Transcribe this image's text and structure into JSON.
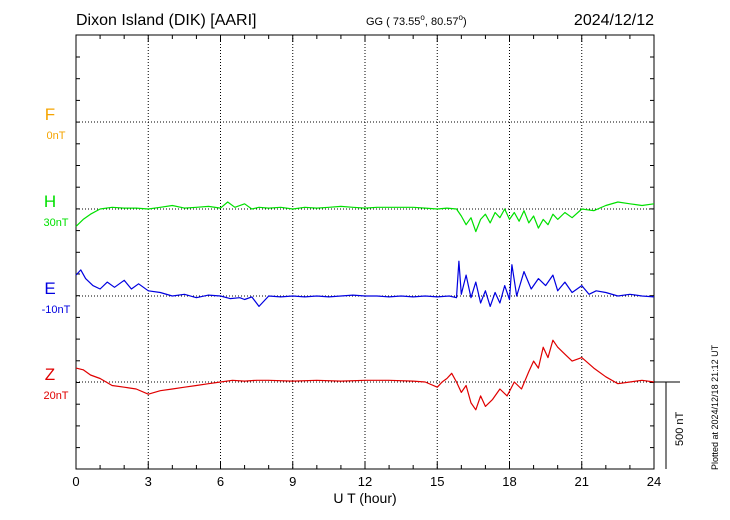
{
  "header": {
    "station": "Dixon Island (DIK)  [AARI]",
    "coords_prefix": "GG ( 73.55",
    "coords_mid": ",  80.57",
    "coords_suffix": ")",
    "date": "2024/12/12"
  },
  "footer": {
    "plotted": "Plotted at 2024/12/18 21:12 UT",
    "scale_label": "500 nT"
  },
  "chart_data": {
    "type": "line",
    "title": "Dixon Island (DIK)  [AARI]",
    "xlabel": "U T (hour)",
    "xlim": [
      0,
      24
    ],
    "xticks": [
      0,
      3,
      6,
      9,
      12,
      15,
      18,
      21,
      24
    ],
    "grid": true,
    "scale_bar_nT": 500,
    "series": [
      {
        "name": "F",
        "baseline_label": "0nT",
        "color": "#f5a400",
        "values": []
      },
      {
        "name": "H",
        "baseline_label": "30nT",
        "color": "#00e000",
        "x": [
          0,
          0.3,
          0.6,
          1,
          1.5,
          2,
          2.5,
          3,
          3.5,
          4,
          4.5,
          5,
          5.5,
          6,
          6.3,
          6.6,
          7,
          7.3,
          7.6,
          8,
          8.5,
          9,
          9.5,
          10,
          10.5,
          11,
          11.5,
          12,
          12.5,
          13,
          13.5,
          14,
          14.5,
          15,
          15.4,
          15.8,
          16,
          16.2,
          16.4,
          16.6,
          16.8,
          17,
          17.2,
          17.4,
          17.6,
          17.8,
          18,
          18.2,
          18.4,
          18.6,
          18.8,
          19,
          19.2,
          19.4,
          19.6,
          19.8,
          20,
          20.3,
          20.6,
          21,
          21.5,
          22,
          22.5,
          23,
          23.5,
          24
        ],
        "values": [
          -100,
          -60,
          -30,
          0,
          10,
          5,
          5,
          0,
          10,
          20,
          5,
          10,
          15,
          5,
          40,
          10,
          30,
          0,
          10,
          5,
          10,
          0,
          10,
          5,
          10,
          15,
          10,
          5,
          10,
          10,
          10,
          10,
          5,
          0,
          5,
          0,
          -40,
          -90,
          -50,
          -130,
          -60,
          -30,
          -80,
          -20,
          -50,
          0,
          -60,
          -20,
          -70,
          -10,
          -80,
          -40,
          -110,
          -60,
          -90,
          -30,
          -60,
          -20,
          -50,
          0,
          -10,
          20,
          40,
          30,
          20,
          30
        ]
      },
      {
        "name": "E",
        "baseline_label": "-10nT",
        "color": "#0000e0",
        "x": [
          0,
          0.2,
          0.4,
          0.7,
          1,
          1.3,
          1.6,
          2,
          2.3,
          2.6,
          3,
          3.5,
          4,
          4.5,
          5,
          5.5,
          6,
          6.4,
          6.8,
          7,
          7.3,
          7.6,
          8,
          8.5,
          9,
          9.5,
          10,
          10.5,
          11,
          11.5,
          12,
          12.5,
          13,
          13.5,
          14,
          14.5,
          15,
          15.5,
          15.8,
          15.9,
          16,
          16.2,
          16.4,
          16.6,
          16.8,
          17,
          17.2,
          17.4,
          17.6,
          17.8,
          18,
          18.1,
          18.3,
          18.6,
          18.9,
          19.2,
          19.5,
          19.8,
          20,
          20.3,
          20.6,
          21,
          21.3,
          21.6,
          22,
          22.5,
          23,
          23.5,
          24
        ],
        "values": [
          120,
          150,
          100,
          60,
          40,
          80,
          50,
          90,
          40,
          70,
          30,
          20,
          0,
          10,
          -10,
          5,
          0,
          -15,
          -10,
          -20,
          -5,
          -60,
          0,
          -5,
          0,
          -5,
          0,
          -5,
          0,
          5,
          0,
          0,
          -5,
          0,
          -5,
          0,
          -5,
          0,
          -10,
          200,
          10,
          120,
          -10,
          80,
          -40,
          30,
          -60,
          20,
          -40,
          60,
          -20,
          180,
          0,
          140,
          40,
          100,
          60,
          120,
          30,
          80,
          20,
          60,
          10,
          30,
          20,
          0,
          10,
          0,
          -5
        ]
      },
      {
        "name": "Z",
        "baseline_label": "20nT",
        "color": "#e00000",
        "x": [
          0,
          0.3,
          0.6,
          1,
          1.5,
          2,
          2.5,
          3,
          3.5,
          4,
          4.5,
          5,
          5.5,
          6,
          6.5,
          7,
          7.5,
          8,
          9,
          10,
          11,
          12,
          13,
          14,
          14.5,
          15,
          15.2,
          15.4,
          15.6,
          15.8,
          16,
          16.2,
          16.4,
          16.6,
          16.8,
          17,
          17.3,
          17.6,
          17.9,
          18.2,
          18.5,
          18.8,
          19,
          19.2,
          19.4,
          19.6,
          19.8,
          20,
          20.3,
          20.6,
          21,
          21.5,
          22,
          22.5,
          23,
          23.5,
          24
        ],
        "values": [
          80,
          70,
          40,
          20,
          -20,
          -30,
          -40,
          -70,
          -50,
          -40,
          -30,
          -20,
          -10,
          0,
          10,
          5,
          10,
          10,
          5,
          10,
          5,
          10,
          10,
          5,
          0,
          -30,
          0,
          20,
          50,
          0,
          -60,
          -20,
          -120,
          -160,
          -80,
          -140,
          -100,
          -40,
          -80,
          0,
          -40,
          60,
          120,
          80,
          200,
          140,
          240,
          200,
          160,
          120,
          140,
          80,
          30,
          -10,
          0,
          10,
          0
        ]
      }
    ]
  }
}
